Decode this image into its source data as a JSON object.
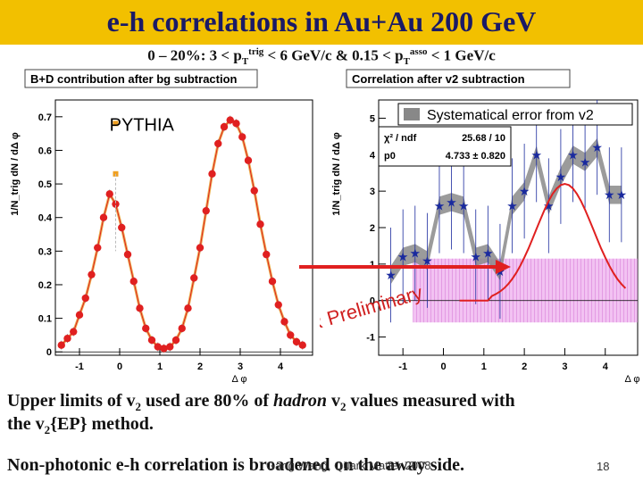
{
  "slide": {
    "title": "e-h correlations in Au+Au 200 GeV",
    "subtitle_parts": {
      "a": "0 – 20%: 3 < p",
      "a_sub": "T",
      "a_sup": "trig",
      "b": " < 6 GeV/c & 0.15 < p",
      "b_sub": "T",
      "b_sup": "asso",
      "c": " < 1 GeV/c"
    },
    "text1_line1": "Upper limits of v",
    "text1_sub": "2",
    "text1_mid": " used are 80% of ",
    "text1_hadron": "hadron",
    "text1_v": " v",
    "text1_sub2": "2",
    "text1_end": " values measured with",
    "text1_line2a": "the v",
    "text1_line2_sub": "2",
    "text1_line2b": "{EP} method.",
    "text2": "Non-photonic e-h correlation is broadened on the away side.",
    "footer_overlay": "Gang Wang, Quark Matter 2008",
    "page_number": "18"
  },
  "chart_data": [
    {
      "type": "scatter",
      "title": "B+D contribution after bg subtraction",
      "annotation": "PYTHIA",
      "xlabel": "Δ φ",
      "ylabel": "1/N_trig dN / dΔ φ",
      "xlim": [
        -1.6,
        4.8
      ],
      "ylim": [
        -0.01,
        0.75
      ],
      "x_ticks": [
        -1,
        0,
        1,
        2,
        3,
        4
      ],
      "y_ticks": [
        0,
        0.1,
        0.2,
        0.3,
        0.4,
        0.5,
        0.6,
        0.7
      ],
      "y_tick_labels": [
        "0",
        "0.1",
        "0.2",
        "0.3",
        "0.4",
        "0.5",
        "0.6",
        "0.7"
      ],
      "series": [
        {
          "color": "#e02020",
          "x": [
            -1.45,
            -1.3,
            -1.15,
            -1.0,
            -0.85,
            -0.7,
            -0.55,
            -0.4,
            -0.25,
            -0.1,
            0.05,
            0.2,
            0.35,
            0.5,
            0.65,
            0.8,
            0.95,
            1.1,
            1.25,
            1.4,
            1.55,
            1.7,
            1.85,
            2.0,
            2.15,
            2.3,
            2.45,
            2.6,
            2.75,
            2.9,
            3.05,
            3.2,
            3.35,
            3.5,
            3.65,
            3.8,
            3.95,
            4.1,
            4.25,
            4.4,
            4.55
          ],
          "y": [
            0.02,
            0.04,
            0.06,
            0.11,
            0.16,
            0.23,
            0.31,
            0.4,
            0.47,
            0.44,
            0.37,
            0.29,
            0.21,
            0.13,
            0.07,
            0.035,
            0.015,
            0.01,
            0.015,
            0.035,
            0.07,
            0.13,
            0.22,
            0.31,
            0.42,
            0.53,
            0.62,
            0.67,
            0.69,
            0.68,
            0.64,
            0.57,
            0.48,
            0.38,
            0.29,
            0.21,
            0.14,
            0.09,
            0.05,
            0.03,
            0.02
          ]
        }
      ],
      "fit_curve_color": "#e8a030",
      "marker_color_top": "#f0a020"
    },
    {
      "type": "scatter",
      "title": "Correlation after v2 subtraction",
      "xlabel": "Δ φ",
      "ylabel": "1/N_trig dN / dΔ φ",
      "xlim": [
        -1.6,
        4.8
      ],
      "ylim": [
        -1.5,
        5.5
      ],
      "x_ticks": [
        -1,
        0,
        1,
        2,
        3,
        4
      ],
      "y_ticks": [
        -1,
        0,
        1,
        2,
        3,
        4,
        5
      ],
      "legend_title": "Systematical error from v2",
      "fit_stats": {
        "chi2_label": "χ² / ndf",
        "chi2_value": "25.68 / 10",
        "p0_label": "p0",
        "p0_value": "4.733 ± 0.820"
      },
      "watermark": "STAR Preliminary",
      "series": [
        {
          "name": "",
          "color": "#1a2a9e",
          "x": [
            -1.3,
            -1.0,
            -0.7,
            -0.4,
            -0.1,
            0.2,
            0.5,
            0.8,
            1.1,
            1.4,
            1.7,
            2.0,
            2.3,
            2.6,
            2.9,
            3.2,
            3.5,
            3.8,
            4.1,
            4.4
          ],
          "y": [
            0.7,
            1.2,
            1.3,
            1.1,
            2.6,
            2.7,
            2.6,
            1.2,
            1.3,
            0.8,
            2.6,
            3.0,
            4.0,
            2.6,
            3.4,
            4.0,
            3.8,
            4.2,
            2.9,
            2.9
          ]
        }
      ],
      "fit_line_color": "#e02020"
    }
  ]
}
